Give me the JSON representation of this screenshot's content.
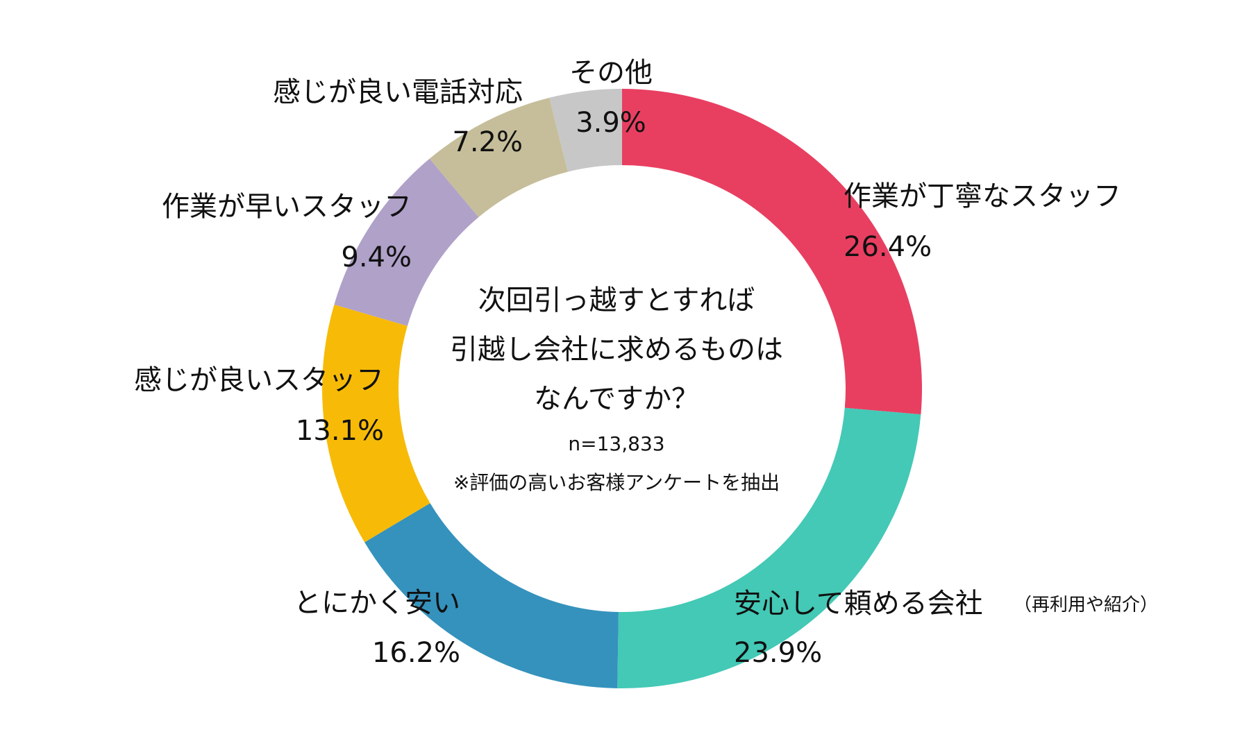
{
  "chart_data": {
    "type": "pie",
    "donut": true,
    "center_title": [
      "次回引っ越すとすれば",
      "引越し会社に求めるものは",
      "なんですか？"
    ],
    "sample_size": "n=13,833",
    "note": "※評価の高いお客様アンケートを抽出",
    "slices": [
      {
        "label": "作業が丁寧なスタッフ",
        "value": 26.4,
        "value_label": "26.4%",
        "color": "#e83f61"
      },
      {
        "label": "安心して頼める会社",
        "label_suffix": "（再利用や紹介）",
        "value": 23.9,
        "value_label": "23.9%",
        "color": "#43c9b6"
      },
      {
        "label": "とにかく安い",
        "value": 16.2,
        "value_label": "16.2%",
        "color": "#3592bd"
      },
      {
        "label": "感じが良いスタッフ",
        "value": 13.1,
        "value_label": "13.1%",
        "color": "#f7bb07"
      },
      {
        "label": "作業が早いスタッフ",
        "value": 9.4,
        "value_label": "9.4%",
        "color": "#b0a1c9"
      },
      {
        "label": "感じが良い電話対応",
        "value": 7.2,
        "value_label": "7.2%",
        "color": "#c6be9a"
      },
      {
        "label": "その他",
        "value": 3.9,
        "value_label": "3.9%",
        "color": "#c7c7c7"
      }
    ]
  }
}
